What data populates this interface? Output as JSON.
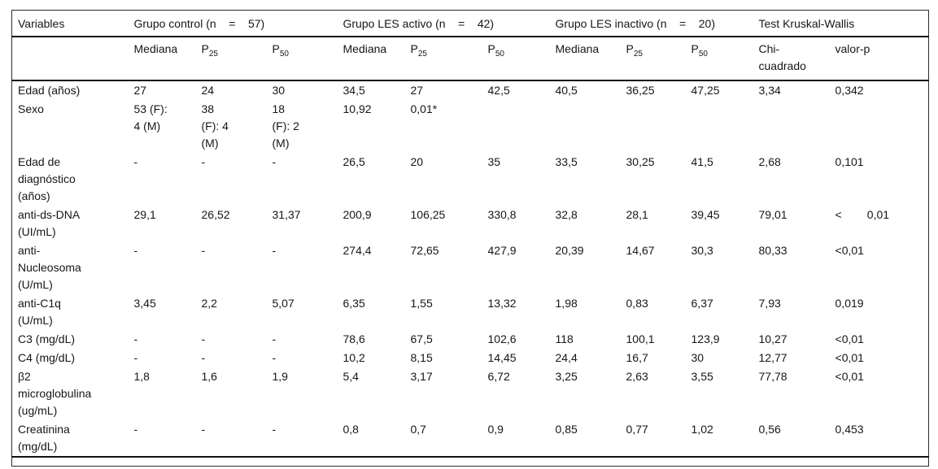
{
  "table": {
    "header": {
      "variables": "Variables",
      "group_control": "Grupo control (n    =    57)",
      "group_les_activo": "Grupo LES activo (n    =    42)",
      "group_les_inactivo": "Grupo LES inactivo (n    =    20)",
      "test_kruskal_wallis": "Test Kruskal-Wallis",
      "mediana": "Mediana",
      "p_base": "P",
      "p25_sub": "25",
      "p50_sub": "50",
      "chi_cuadrado": "Chi-\ncuadrado",
      "valor_p": "valor-p"
    },
    "rows": [
      {
        "label": "Edad (años)",
        "cells": [
          "27",
          "24",
          "30",
          "34,5",
          "27",
          "42,5",
          "40,5",
          "36,25",
          "47,25",
          "3,34",
          "0,342"
        ]
      },
      {
        "label": "Sexo",
        "cells": [
          "53 (F):\n4 (M)",
          "38\n(F): 4\n(M)",
          "18\n(F): 2\n(M)",
          "10,92",
          "0,01*",
          "",
          "",
          "",
          "",
          "",
          ""
        ]
      },
      {
        "label": "Edad de\ndiagnóstico\n(años)",
        "cells": [
          "-",
          "-",
          "-",
          "26,5",
          "20",
          "35",
          "33,5",
          "30,25",
          "41,5",
          "2,68",
          "0,101"
        ]
      },
      {
        "label": "anti-ds-DNA\n(UI/mL)",
        "cells": [
          "29,1",
          "26,52",
          "31,37",
          "200,9",
          "106,25",
          "330,8",
          "32,8",
          "28,1",
          "39,45",
          "79,01",
          "<        0,01"
        ]
      },
      {
        "label": "anti-\nNucleosoma\n(U/mL)",
        "cells": [
          "-",
          "-",
          "-",
          "274,4",
          "72,65",
          "427,9",
          "20,39",
          "14,67",
          "30,3",
          "80,33",
          "<0,01"
        ]
      },
      {
        "label": "anti-C1q\n(U/mL)",
        "cells": [
          "3,45",
          "2,2",
          "5,07",
          "6,35",
          "1,55",
          "13,32",
          "1,98",
          "0,83",
          "6,37",
          "7,93",
          "0,019"
        ]
      },
      {
        "label": "C3 (mg/dL)",
        "cells": [
          "-",
          "-",
          "-",
          "78,6",
          "67,5",
          "102,6",
          "118",
          "100,1",
          "123,9",
          "10,27",
          "<0,01"
        ]
      },
      {
        "label": "C4 (mg/dL)",
        "cells": [
          "-",
          "-",
          "-",
          "10,2",
          "8,15",
          "14,45",
          "24,4",
          "16,7",
          "30",
          "12,77",
          "<0,01"
        ]
      },
      {
        "label": "β2\nmicroglobulina\n(ug/mL)",
        "cells": [
          "1,8",
          "1,6",
          "1,9",
          "5,4",
          "3,17",
          "6,72",
          "3,25",
          "2,63",
          "3,55",
          "77,78",
          "<0,01"
        ]
      },
      {
        "label": "Creatinina\n(mg/dL)",
        "cells": [
          "-",
          "-",
          "-",
          "0,8",
          "0,7",
          "0,9",
          "0,85",
          "0,77",
          "1,02",
          "0,56",
          "0,453"
        ]
      }
    ]
  }
}
